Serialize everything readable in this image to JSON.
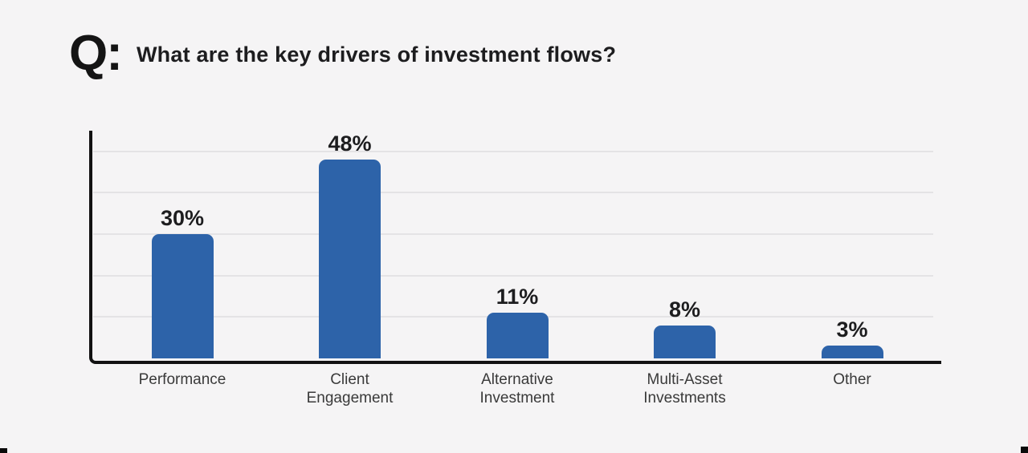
{
  "header": {
    "q_prefix": "Q:",
    "title": "What are the key drivers of investment flows?"
  },
  "chart_data": {
    "type": "bar",
    "title": "What are the key drivers of investment flows?",
    "categories": [
      "Performance",
      "Client Engagement",
      "Alternative Investment",
      "Multi-Asset Investments",
      "Other"
    ],
    "category_lines": [
      [
        "Performance"
      ],
      [
        "Client",
        "Engagement"
      ],
      [
        "Alternative",
        "Investment"
      ],
      [
        "Multi-Asset",
        "Investments"
      ],
      [
        "Other"
      ]
    ],
    "values": [
      30,
      48,
      11,
      8,
      3
    ],
    "value_labels": [
      "30%",
      "48%",
      "11%",
      "8%",
      "3%"
    ],
    "xlabel": "",
    "ylabel": "",
    "ylim": [
      0,
      55
    ],
    "gridlines_percent": [
      10,
      20,
      30,
      40,
      50
    ],
    "grid": "horizontal-only, no tick labels",
    "legend": "none",
    "colors": {
      "bar": "#2d63a9",
      "axis": "#121212",
      "gridline": "#e4e3e5",
      "background": "#f5f4f5",
      "value_text": "#1d1d1f",
      "category_text": "#3a3a3a"
    }
  }
}
